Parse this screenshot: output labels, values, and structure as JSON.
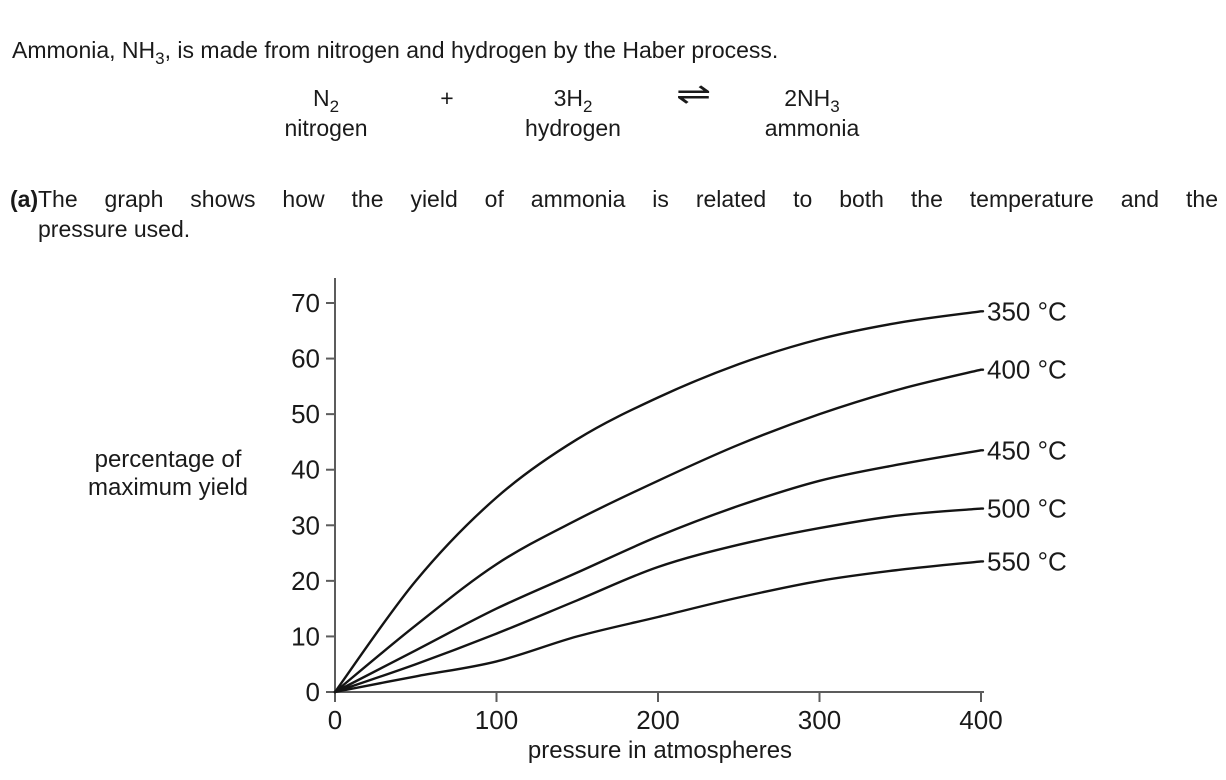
{
  "intro": {
    "pre": "Ammonia, NH",
    "sub": "3",
    "post": ", is made from nitrogen and hydrogen by the Haber process."
  },
  "equation": {
    "terms": [
      {
        "formula": "N",
        "sub": "2",
        "label": "nitrogen"
      },
      {
        "operator": "+"
      },
      {
        "formula": "3H",
        "sub": "2",
        "label": "hydrogen"
      },
      {
        "operator": "⇌"
      },
      {
        "formula": "2NH",
        "sub": "3",
        "label": "ammonia"
      }
    ]
  },
  "part_a": {
    "marker": "(a)",
    "line1": "The graph shows how the yield of ammonia is related to both the temperature and the",
    "line2": "pressure used."
  },
  "chart_data": {
    "type": "line",
    "title": "",
    "xlabel": "pressure in atmospheres",
    "ylabel": [
      "percentage of",
      "maximum yield"
    ],
    "xlim": [
      0,
      400
    ],
    "ylim": [
      0,
      70
    ],
    "x_ticks": [
      0,
      100,
      200,
      300,
      400
    ],
    "y_ticks": [
      0,
      10,
      20,
      30,
      40,
      50,
      60,
      70
    ],
    "grid": false,
    "legend_position": "right-end-labels",
    "axis_color": "#5c5c5c",
    "line_color": "#141414",
    "label_color": "#1a1a1a",
    "x": [
      0,
      50,
      100,
      150,
      200,
      250,
      300,
      350,
      400
    ],
    "series": [
      {
        "name": "350 °C",
        "values": [
          0,
          20,
          35,
          45.5,
          53,
          59,
          63.5,
          66.5,
          68.5
        ]
      },
      {
        "name": "400 °C",
        "values": [
          0,
          12,
          23,
          31,
          38,
          44.5,
          50,
          54.5,
          58
        ]
      },
      {
        "name": "450 °C",
        "values": [
          0,
          7.5,
          15,
          21.5,
          28,
          33.5,
          38,
          41,
          43.5
        ]
      },
      {
        "name": "500 °C",
        "values": [
          0,
          5,
          10.5,
          16.5,
          22.5,
          26.5,
          29.5,
          31.8,
          33
        ]
      },
      {
        "name": "550 °C",
        "values": [
          0,
          2.8,
          5.5,
          10,
          13.5,
          17,
          20,
          22,
          23.5
        ]
      }
    ]
  }
}
